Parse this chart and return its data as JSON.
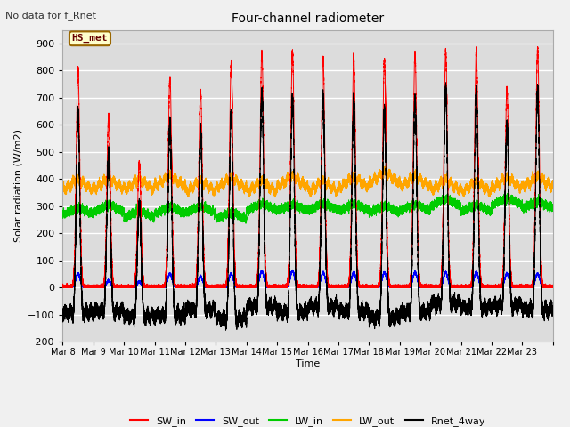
{
  "title": "Four-channel radiometer",
  "top_left_text": "No data for f_Rnet",
  "ylabel": "Solar radiation (W/m2)",
  "xlabel": "Time",
  "legend_labels": [
    "SW_in",
    "SW_out",
    "LW_in",
    "LW_out",
    "Rnet_4way"
  ],
  "legend_colors": [
    "#ff0000",
    "#0000ff",
    "#00cc00",
    "#ffa500",
    "#000000"
  ],
  "box_label": "HS_met",
  "ylim": [
    -200,
    950
  ],
  "yticks": [
    -200,
    -100,
    0,
    100,
    200,
    300,
    400,
    500,
    600,
    700,
    800,
    900
  ],
  "x_tick_labels": [
    "Mar 8",
    "Mar 9",
    "Mar 10",
    "Mar 11",
    "Mar 12",
    "Mar 13",
    "Mar 14",
    "Mar 15",
    "Mar 16",
    "Mar 17",
    "Mar 18",
    "Mar 19",
    "Mar 20",
    "Mar 21",
    "Mar 22",
    "Mar 23"
  ],
  "n_days": 16,
  "plot_bg_color": "#dcdcdc",
  "grid_color": "#ffffff",
  "fig_bg_color": "#f0f0f0",
  "peaks_SW": [
    810,
    635,
    460,
    775,
    725,
    830,
    870,
    870,
    848,
    855,
    840,
    865,
    870,
    880,
    735,
    880
  ],
  "peaks_SW_out": [
    50,
    25,
    20,
    50,
    40,
    50,
    60,
    60,
    55,
    55,
    55,
    55,
    55,
    55,
    50,
    50
  ],
  "LW_in_base": 265,
  "LW_out_base": 358,
  "night_rnet": -100
}
